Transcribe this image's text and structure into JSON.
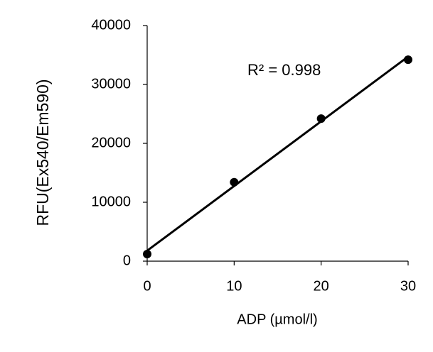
{
  "chart_data": {
    "type": "scatter",
    "x": [
      0,
      10,
      20,
      30
    ],
    "series": [
      {
        "color": "#000000",
        "values": [
          1200,
          13400,
          24200,
          34200
        ]
      }
    ],
    "xlim": [
      0,
      30
    ],
    "xticks": [
      0,
      10,
      20,
      30
    ],
    "ylim": [
      0,
      40000
    ],
    "yticks": [
      0,
      10000,
      20000,
      30000,
      40000
    ],
    "x_label": "ADP (µmol/l)",
    "y_label": "RFU(Ex540/Em590)",
    "annotation": "R² = 0.998",
    "trendline": true
  }
}
